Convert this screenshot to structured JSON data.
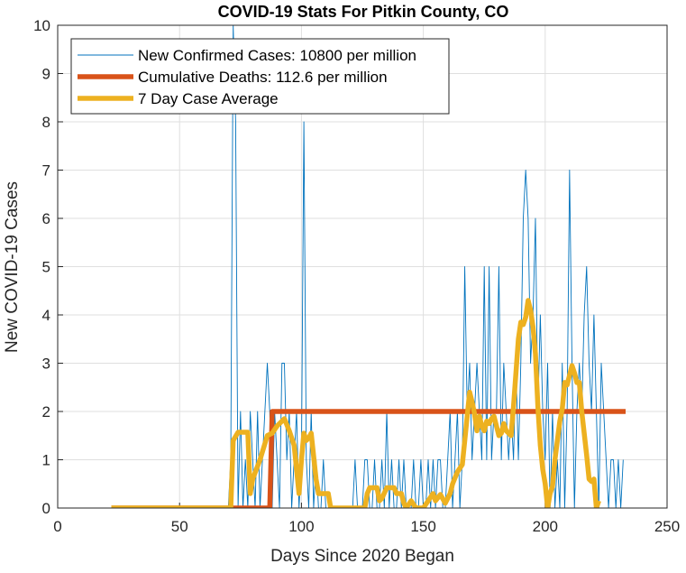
{
  "chart_data": {
    "type": "line",
    "title": "COVID-19 Stats For Pitkin County, CO",
    "xlabel": "Days Since 2020 Began",
    "ylabel": "New COVID-19 Cases",
    "xlim": [
      0,
      250
    ],
    "ylim": [
      0,
      10
    ],
    "xticks": [
      0,
      50,
      100,
      150,
      200,
      250
    ],
    "yticks": [
      0,
      1,
      2,
      3,
      4,
      5,
      6,
      7,
      8,
      9,
      10
    ],
    "grid": true,
    "legend_position": "top-left",
    "series": [
      {
        "name": "New Confirmed Cases: 10800 per million",
        "color": "#0072BD",
        "style": "thin",
        "points": [
          [
            22,
            0
          ],
          [
            70,
            0
          ],
          [
            71,
            1
          ],
          [
            72,
            10
          ],
          [
            73,
            8
          ],
          [
            74,
            0
          ],
          [
            75,
            2
          ],
          [
            76,
            0
          ],
          [
            77,
            1
          ],
          [
            78,
            0
          ],
          [
            79,
            2
          ],
          [
            80,
            1
          ],
          [
            81,
            0
          ],
          [
            82,
            2
          ],
          [
            83,
            0
          ],
          [
            84,
            1
          ],
          [
            85,
            2
          ],
          [
            86,
            3
          ],
          [
            87,
            2
          ],
          [
            88,
            0
          ],
          [
            89,
            2
          ],
          [
            90,
            1
          ],
          [
            91,
            0
          ],
          [
            92,
            3
          ],
          [
            93,
            3
          ],
          [
            94,
            1
          ],
          [
            95,
            2
          ],
          [
            96,
            0
          ],
          [
            97,
            1
          ],
          [
            98,
            2
          ],
          [
            99,
            0
          ],
          [
            100,
            1
          ],
          [
            101,
            8
          ],
          [
            102,
            1
          ],
          [
            103,
            0
          ],
          [
            104,
            2
          ],
          [
            105,
            0
          ],
          [
            106,
            1
          ],
          [
            107,
            0
          ],
          [
            108,
            0
          ],
          [
            109,
            1
          ],
          [
            110,
            0
          ],
          [
            111,
            0
          ],
          [
            120,
            0
          ],
          [
            121,
            0
          ],
          [
            122,
            1
          ],
          [
            123,
            0
          ],
          [
            124,
            0
          ],
          [
            125,
            0
          ],
          [
            126,
            1
          ],
          [
            127,
            1
          ],
          [
            128,
            0
          ],
          [
            129,
            0
          ],
          [
            130,
            1
          ],
          [
            131,
            0
          ],
          [
            132,
            0
          ],
          [
            133,
            1
          ],
          [
            134,
            0
          ],
          [
            135,
            2
          ],
          [
            136,
            0
          ],
          [
            137,
            1
          ],
          [
            138,
            0
          ],
          [
            139,
            0
          ],
          [
            140,
            1
          ],
          [
            141,
            0
          ],
          [
            142,
            1
          ],
          [
            143,
            0
          ],
          [
            144,
            0
          ],
          [
            145,
            0
          ],
          [
            146,
            1
          ],
          [
            147,
            0
          ],
          [
            148,
            0
          ],
          [
            149,
            1
          ],
          [
            150,
            0
          ],
          [
            151,
            0
          ],
          [
            152,
            1
          ],
          [
            153,
            0
          ],
          [
            154,
            1
          ],
          [
            155,
            0
          ],
          [
            156,
            1
          ],
          [
            157,
            1
          ],
          [
            158,
            0
          ],
          [
            159,
            0
          ],
          [
            160,
            1
          ],
          [
            161,
            2
          ],
          [
            162,
            0
          ],
          [
            163,
            1
          ],
          [
            164,
            2
          ],
          [
            165,
            0
          ],
          [
            166,
            1
          ],
          [
            167,
            5
          ],
          [
            168,
            2
          ],
          [
            169,
            3
          ],
          [
            170,
            1
          ],
          [
            171,
            2
          ],
          [
            172,
            3
          ],
          [
            173,
            2
          ],
          [
            174,
            1
          ],
          [
            175,
            5
          ],
          [
            176,
            1
          ],
          [
            177,
            5
          ],
          [
            178,
            1
          ],
          [
            179,
            2
          ],
          [
            180,
            2
          ],
          [
            181,
            5
          ],
          [
            182,
            1
          ],
          [
            183,
            3
          ],
          [
            184,
            2
          ],
          [
            185,
            1
          ],
          [
            186,
            2
          ],
          [
            187,
            1
          ],
          [
            188,
            3
          ],
          [
            189,
            1
          ],
          [
            190,
            3
          ],
          [
            191,
            6
          ],
          [
            192,
            7
          ],
          [
            193,
            6
          ],
          [
            194,
            3
          ],
          [
            195,
            4
          ],
          [
            196,
            6
          ],
          [
            197,
            2
          ],
          [
            198,
            4
          ],
          [
            199,
            2
          ],
          [
            200,
            1
          ],
          [
            201,
            3
          ],
          [
            202,
            0
          ],
          [
            203,
            2
          ],
          [
            204,
            0
          ],
          [
            205,
            1
          ],
          [
            206,
            0
          ],
          [
            207,
            3
          ],
          [
            208,
            0
          ],
          [
            209,
            2
          ],
          [
            210,
            7
          ],
          [
            211,
            3
          ],
          [
            212,
            0
          ],
          [
            213,
            2
          ],
          [
            214,
            3
          ],
          [
            215,
            2
          ],
          [
            216,
            4
          ],
          [
            217,
            5
          ],
          [
            218,
            3
          ],
          [
            219,
            2
          ],
          [
            220,
            4
          ],
          [
            221,
            2
          ],
          [
            222,
            0
          ],
          [
            223,
            3
          ],
          [
            224,
            2
          ],
          [
            225,
            1
          ],
          [
            226,
            0
          ],
          [
            227,
            1
          ],
          [
            228,
            1
          ],
          [
            229,
            0
          ],
          [
            230,
            1
          ],
          [
            231,
            0
          ],
          [
            232,
            1
          ]
        ]
      },
      {
        "name": "Cumulative Deaths: 112.6 per million",
        "color": "#D95319",
        "style": "thick",
        "points": [
          [
            22,
            0
          ],
          [
            87,
            0
          ],
          [
            88,
            2
          ],
          [
            233,
            2
          ]
        ]
      },
      {
        "name": "7 Day Case Average",
        "color": "#EDB120",
        "style": "thick",
        "points": [
          [
            22,
            0
          ],
          [
            71,
            0
          ],
          [
            72,
            1.4
          ],
          [
            74,
            1.57
          ],
          [
            78,
            1.57
          ],
          [
            79,
            0.3
          ],
          [
            80,
            0.6
          ],
          [
            83,
            1.0
          ],
          [
            86,
            1.5
          ],
          [
            88,
            1.55
          ],
          [
            90,
            1.7
          ],
          [
            93,
            1.85
          ],
          [
            95,
            1.6
          ],
          [
            97,
            1.3
          ],
          [
            98,
            0.8
          ],
          [
            99,
            0.3
          ],
          [
            100,
            1.0
          ],
          [
            101,
            1.55
          ],
          [
            102,
            1.4
          ],
          [
            103,
            1.45
          ],
          [
            104,
            1.55
          ],
          [
            106,
            0.6
          ],
          [
            107,
            0.3
          ],
          [
            111,
            0.3
          ],
          [
            112,
            0
          ],
          [
            126,
            0
          ],
          [
            127,
            0.3
          ],
          [
            128,
            0.42
          ],
          [
            131,
            0.42
          ],
          [
            132,
            0.15
          ],
          [
            133,
            0.2
          ],
          [
            135,
            0.42
          ],
          [
            138,
            0.42
          ],
          [
            139,
            0.3
          ],
          [
            141,
            0.3
          ],
          [
            142,
            0.1
          ],
          [
            143,
            0
          ],
          [
            145,
            0.15
          ],
          [
            147,
            0
          ],
          [
            150,
            0
          ],
          [
            152,
            0.15
          ],
          [
            154,
            0.3
          ],
          [
            155,
            0.15
          ],
          [
            157,
            0.28
          ],
          [
            159,
            0.1
          ],
          [
            161,
            0.3
          ],
          [
            162,
            0.5
          ],
          [
            164,
            0.75
          ],
          [
            166,
            0.9
          ],
          [
            167,
            1.4
          ],
          [
            168,
            1.9
          ],
          [
            169,
            2.4
          ],
          [
            170,
            2.2
          ],
          [
            171,
            1.95
          ],
          [
            172,
            1.6
          ],
          [
            173,
            1.9
          ],
          [
            174,
            1.7
          ],
          [
            175,
            1.6
          ],
          [
            176,
            1.8
          ],
          [
            177,
            1.75
          ],
          [
            178,
            1.85
          ],
          [
            179,
            1.9
          ],
          [
            181,
            1.5
          ],
          [
            182,
            1.55
          ],
          [
            183,
            1.75
          ],
          [
            184,
            1.6
          ],
          [
            185,
            1.55
          ],
          [
            186,
            1.5
          ],
          [
            187,
            2.1
          ],
          [
            188,
            2.8
          ],
          [
            189,
            3.5
          ],
          [
            190,
            3.85
          ],
          [
            191,
            3.8
          ],
          [
            192,
            3.95
          ],
          [
            193,
            4.3
          ],
          [
            194,
            4.1
          ],
          [
            195,
            3.75
          ],
          [
            196,
            3.2
          ],
          [
            197,
            2.1
          ],
          [
            198,
            1.3
          ],
          [
            199,
            0.8
          ],
          [
            200,
            0.5
          ],
          [
            201,
            0
          ],
          [
            202,
            0.3
          ],
          [
            203,
            0.45
          ],
          [
            204,
            1.0
          ],
          [
            205,
            1.4
          ],
          [
            206,
            1.8
          ],
          [
            207,
            2.05
          ],
          [
            208,
            2.6
          ],
          [
            209,
            2.55
          ],
          [
            210,
            2.75
          ],
          [
            211,
            2.95
          ],
          [
            212,
            2.8
          ],
          [
            213,
            2.6
          ],
          [
            214,
            2.6
          ],
          [
            215,
            2.0
          ],
          [
            216,
            1.55
          ],
          [
            217,
            1.1
          ],
          [
            218,
            0.6
          ],
          [
            219,
            0.55
          ],
          [
            220,
            0.6
          ],
          [
            221,
            0.0
          ],
          [
            222,
            0.15
          ]
        ]
      }
    ]
  }
}
